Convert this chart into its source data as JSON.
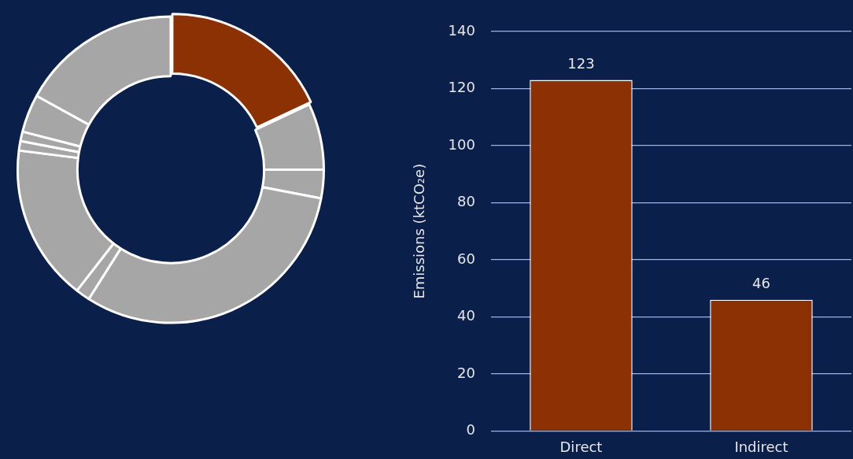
{
  "chart_data": [
    {
      "type": "donut",
      "categories": [
        null,
        null,
        null,
        null,
        null,
        null,
        null,
        null,
        null,
        null
      ],
      "values": [
        18,
        7,
        3,
        31,
        1.5,
        16.5,
        1,
        1,
        4,
        17
      ],
      "colors": [
        "#8b3103",
        "#a6a6a6",
        "#a6a6a6",
        "#a6a6a6",
        "#a6a6a6",
        "#a6a6a6",
        "#a6a6a6",
        "#a6a6a6",
        "#a6a6a6",
        "#a6a6a6"
      ]
    },
    {
      "type": "bar",
      "categories": [
        "Direct",
        "Indirect"
      ],
      "values": [
        123,
        46
      ],
      "color": "#8b3103",
      "ylabel": "Emissions (ktCO₂e)",
      "ylim": [
        0,
        140
      ],
      "yticks": [
        0,
        20,
        40,
        60,
        80,
        100,
        120,
        140
      ],
      "grid": "y",
      "data_labels": true
    }
  ]
}
